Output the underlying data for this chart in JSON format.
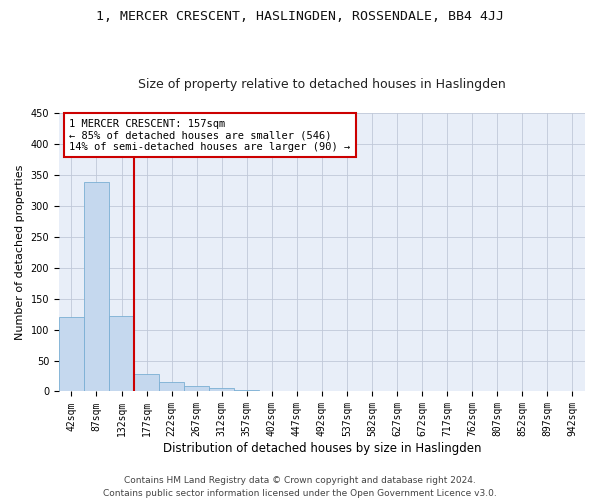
{
  "title": "1, MERCER CRESCENT, HASLINGDEN, ROSSENDALE, BB4 4JJ",
  "subtitle": "Size of property relative to detached houses in Haslingden",
  "xlabel": "Distribution of detached houses by size in Haslingden",
  "ylabel": "Number of detached properties",
  "bar_values": [
    121,
    338,
    122,
    29,
    15,
    9,
    6,
    2,
    1,
    1,
    1,
    0,
    0,
    0,
    0,
    0,
    0,
    0,
    0,
    0,
    0
  ],
  "bar_labels": [
    "42sqm",
    "87sqm",
    "132sqm",
    "177sqm",
    "222sqm",
    "267sqm",
    "312sqm",
    "357sqm",
    "402sqm",
    "447sqm",
    "492sqm",
    "537sqm",
    "582sqm",
    "627sqm",
    "672sqm",
    "717sqm",
    "762sqm",
    "807sqm",
    "852sqm",
    "897sqm",
    "942sqm"
  ],
  "bar_color": "#c5d8ee",
  "bar_edge_color": "#7aafd4",
  "vline_color": "#cc0000",
  "annotation_text": "1 MERCER CRESCENT: 157sqm\n← 85% of detached houses are smaller (546)\n14% of semi-detached houses are larger (90) →",
  "annotation_box_color": "#ffffff",
  "annotation_border_color": "#cc0000",
  "ylim": [
    0,
    450
  ],
  "yticks": [
    0,
    50,
    100,
    150,
    200,
    250,
    300,
    350,
    400,
    450
  ],
  "bg_color": "#e8eef8",
  "footer_line1": "Contains HM Land Registry data © Crown copyright and database right 2024.",
  "footer_line2": "Contains public sector information licensed under the Open Government Licence v3.0.",
  "title_fontsize": 9.5,
  "subtitle_fontsize": 9,
  "xlabel_fontsize": 8.5,
  "ylabel_fontsize": 8,
  "tick_fontsize": 7,
  "annotation_fontsize": 7.5,
  "footer_fontsize": 6.5
}
